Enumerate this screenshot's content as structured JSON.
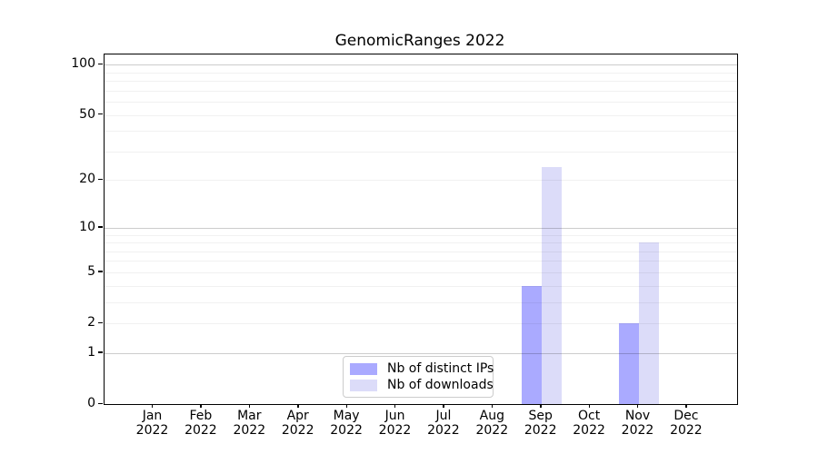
{
  "chart_data": {
    "type": "bar",
    "title": "GenomicRanges 2022",
    "categories": [
      "Jan\n2022",
      "Feb\n2022",
      "Mar\n2022",
      "Apr\n2022",
      "May\n2022",
      "Jun\n2022",
      "Jul\n2022",
      "Aug\n2022",
      "Sep\n2022",
      "Oct\n2022",
      "Nov\n2022",
      "Dec\n2022"
    ],
    "series": [
      {
        "name": "Nb of distinct IPs",
        "color": "#aaaaff",
        "values": [
          0,
          0,
          0,
          0,
          0,
          0,
          0,
          0,
          4,
          0,
          2,
          0
        ]
      },
      {
        "name": "Nb of downloads",
        "color": "#dcdcf9",
        "values": [
          0,
          0,
          0,
          0,
          0,
          0,
          0,
          0,
          24,
          0,
          8,
          0
        ]
      }
    ],
    "xlabel": "",
    "ylabel": "",
    "yscale": "log1p",
    "ylim": [
      0,
      115
    ],
    "yticks": [
      0,
      1,
      2,
      5,
      10,
      20,
      50,
      100
    ],
    "grid": "horizontal",
    "grid_major_values": [
      1,
      10,
      100
    ],
    "grid_minor_values": [
      2,
      3,
      4,
      5,
      6,
      7,
      8,
      9,
      20,
      30,
      40,
      50,
      60,
      70,
      80,
      90
    ],
    "grid_major_color": "rgba(0,0,0,0.20)",
    "grid_minor_color": "rgba(0,0,0,0.055)",
    "legend_position": "bottom-center"
  }
}
